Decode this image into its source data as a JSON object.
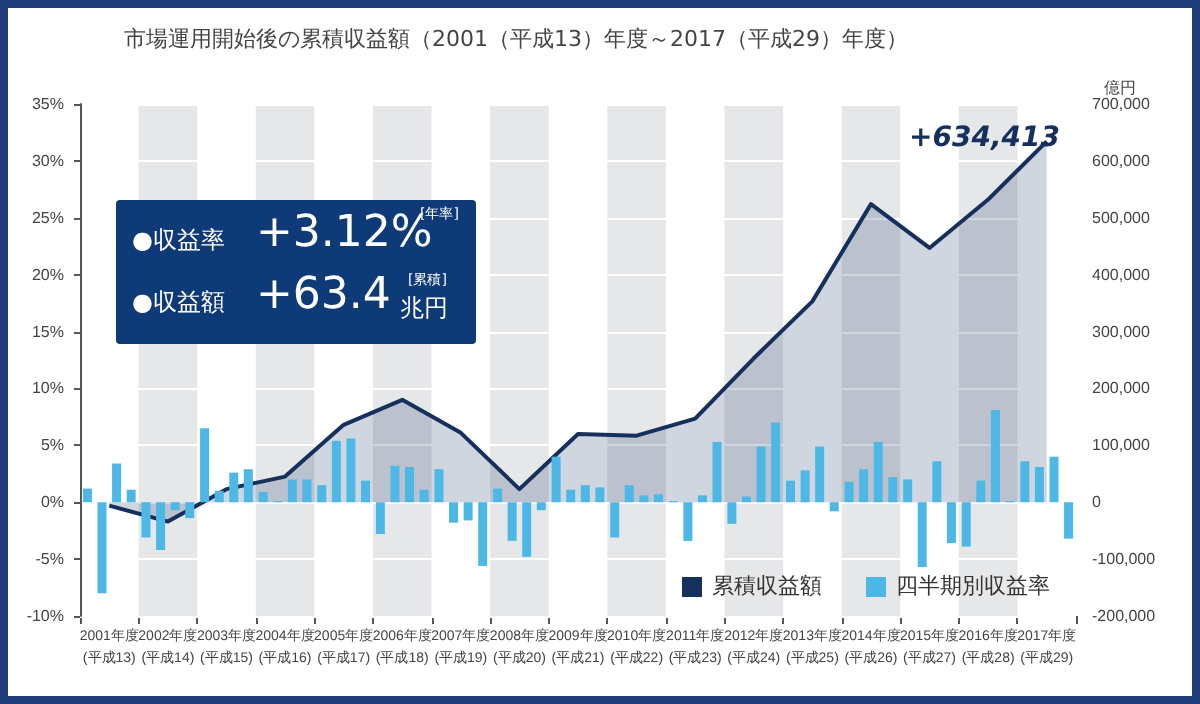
{
  "chart_data": {
    "type": "bar",
    "title": "市場運用開始後の累積収益額（2001（平成13）年度～2017（平成29）年度）",
    "y2label": "億円",
    "annotations": [
      "●収益率",
      "+3.12%",
      "[年率]",
      "●収益額",
      "+63.4",
      "兆円",
      "[累積]",
      "+634,413"
    ],
    "categories": [
      "2001年度(平成13)",
      "2002年度(平成14)",
      "2003年度(平成15)",
      "2004年度(平成16)",
      "2005年度(平成17)",
      "2006年度(平成18)",
      "2007年度(平成19)",
      "2008年度(平成20)",
      "2009年度(平成21)",
      "2010年度(平成22)",
      "2011年度(平成23)",
      "2012年度(平成24)",
      "2013年度(平成25)",
      "2014年度(平成26)",
      "2015年度(平成27)",
      "2016年度(平成28)",
      "2017年度(平成29)"
    ],
    "ylim": [
      -10,
      35
    ],
    "yticks": [
      {
        "value": -10,
        "label": "-10%"
      },
      {
        "value": -5,
        "label": "-5%"
      },
      {
        "value": 0,
        "label": "0%"
      },
      {
        "value": 5,
        "label": "5%"
      },
      {
        "value": 10,
        "label": "10%"
      },
      {
        "value": 15,
        "label": "15%"
      },
      {
        "value": 20,
        "label": "20%"
      },
      {
        "value": 25,
        "label": "25%"
      },
      {
        "value": 30,
        "label": "30%"
      },
      {
        "value": 35,
        "label": "35%"
      }
    ],
    "y2lim": [
      -200000,
      700000
    ],
    "y2ticks": [
      {
        "value": -200000,
        "label": "-200,000"
      },
      {
        "value": -100000,
        "label": "-100,000"
      },
      0,
      {
        "value": 100000,
        "label": "100,000"
      },
      {
        "value": 200000,
        "label": "200,000"
      },
      {
        "value": 300000,
        "label": "300,000"
      },
      {
        "value": 400000,
        "label": "400,000"
      },
      {
        "value": 500000,
        "label": "500,000"
      },
      {
        "value": 600000,
        "label": "600,000"
      },
      {
        "value": 700000,
        "label": "700,000"
      }
    ],
    "grid": "y",
    "legend": "bottom right",
    "marker": "none",
    "line_style": "solid",
    "bands": [
      {
        "axis": "x",
        "from": "2002年度(平成14)",
        "to": "2002年度(平成14)",
        "color": "#e6e7e9"
      },
      {
        "axis": "x",
        "from": "2004年度(平成16)",
        "to": "2004年度(平成16)",
        "color": "#e6e7e9"
      },
      {
        "axis": "x",
        "from": "2006年度(平成18)",
        "to": "2006年度(平成18)",
        "color": "#e6e7e9"
      },
      {
        "axis": "x",
        "from": "2008年度(平成20)",
        "to": "2008年度(平成20)",
        "color": "#e6e7e9"
      },
      {
        "axis": "x",
        "from": "2010年度(平成22)",
        "to": "2010年度(平成22)",
        "color": "#e6e7e9"
      },
      {
        "axis": "x",
        "from": "2012年度(平成24)",
        "to": "2012年度(平成24)",
        "color": "#e6e7e9"
      },
      {
        "axis": "x",
        "from": "2014年度(平成26)",
        "to": "2014年度(平成26)",
        "color": "#e6e7e9"
      },
      {
        "axis": "x",
        "from": "2016年度(平成28)",
        "to": "2016年度(平成28)",
        "color": "#e6e7e9"
      }
    ],
    "series": [
      {
        "name": "累積収益額",
        "type": "area",
        "axis": "y2",
        "color": "#16305e",
        "values": [
          -6000,
          -34000,
          23000,
          45000,
          136000,
          180000,
          122000,
          23000,
          120000,
          117000,
          147000,
          253000,
          353000,
          524000,
          447000,
          532000,
          634413
        ]
      },
      {
        "name": "四半期別収益率",
        "color": "#4db8e5",
        "values": [
          1.2,
          -3.1,
          6.5,
          0.9,
          1.5,
          -2.8,
          2.9,
          1.2,
          4.0,
          -3.1,
          0.1,
          -1.9,
          1.9,
          1.8,
          2.0,
          -3.9,
          3.6
        ]
      },
      {
        "color": "#4db8e5",
        "values": [
          -8.0,
          -4.2,
          1.0,
          0.1,
          5.4,
          3.2,
          -1.8,
          -3.4,
          1.1,
          1.5,
          -3.4,
          0.5,
          2.8,
          2.9,
          -5.7,
          1.9,
          3.1
        ]
      },
      {
        "color": "#4db8e5",
        "values": [
          3.4,
          -0.7,
          2.6,
          2.0,
          5.6,
          3.1,
          -1.6,
          -4.8,
          1.5,
          0.6,
          0.6,
          4.9,
          4.9,
          5.3,
          3.6,
          8.1,
          4.0
        ]
      },
      {
        "color": "#4db8e5",
        "values": [
          1.1,
          -1.4,
          2.9,
          2.0,
          1.9,
          1.1,
          -5.6,
          -0.7,
          1.3,
          0.7,
          5.3,
          7.0,
          -0.8,
          2.2,
          -3.6,
          0.1,
          -3.2
        ]
      }
    ]
  }
}
